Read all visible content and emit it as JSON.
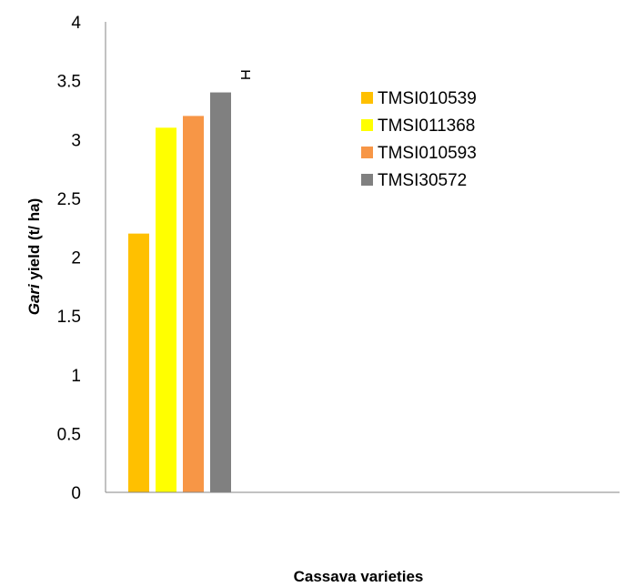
{
  "chart_data": {
    "type": "bar",
    "xlabel": "Cassava varieties",
    "ylabel_italic": "Gari",
    "ylabel_rest": " yield (t/ ha)",
    "ylim": [
      0,
      4
    ],
    "yticks": [
      "0",
      "0.5",
      "1",
      "1.5",
      "2",
      "2.5",
      "3",
      "3.5",
      "4"
    ],
    "grid": false,
    "legend_position": "top-right",
    "series": [
      {
        "name": "TMSI010539",
        "value": 2.2,
        "color": "#FFC000"
      },
      {
        "name": "TMSI011368",
        "value": 3.1,
        "color": "#FFFF00"
      },
      {
        "name": "TMSI010593",
        "value": 3.2,
        "color": "#F79646"
      },
      {
        "name": "TMSI30572",
        "value": 3.4,
        "color": "#808080"
      }
    ],
    "error_bar": {
      "low": 3.52,
      "high": 3.58
    }
  }
}
